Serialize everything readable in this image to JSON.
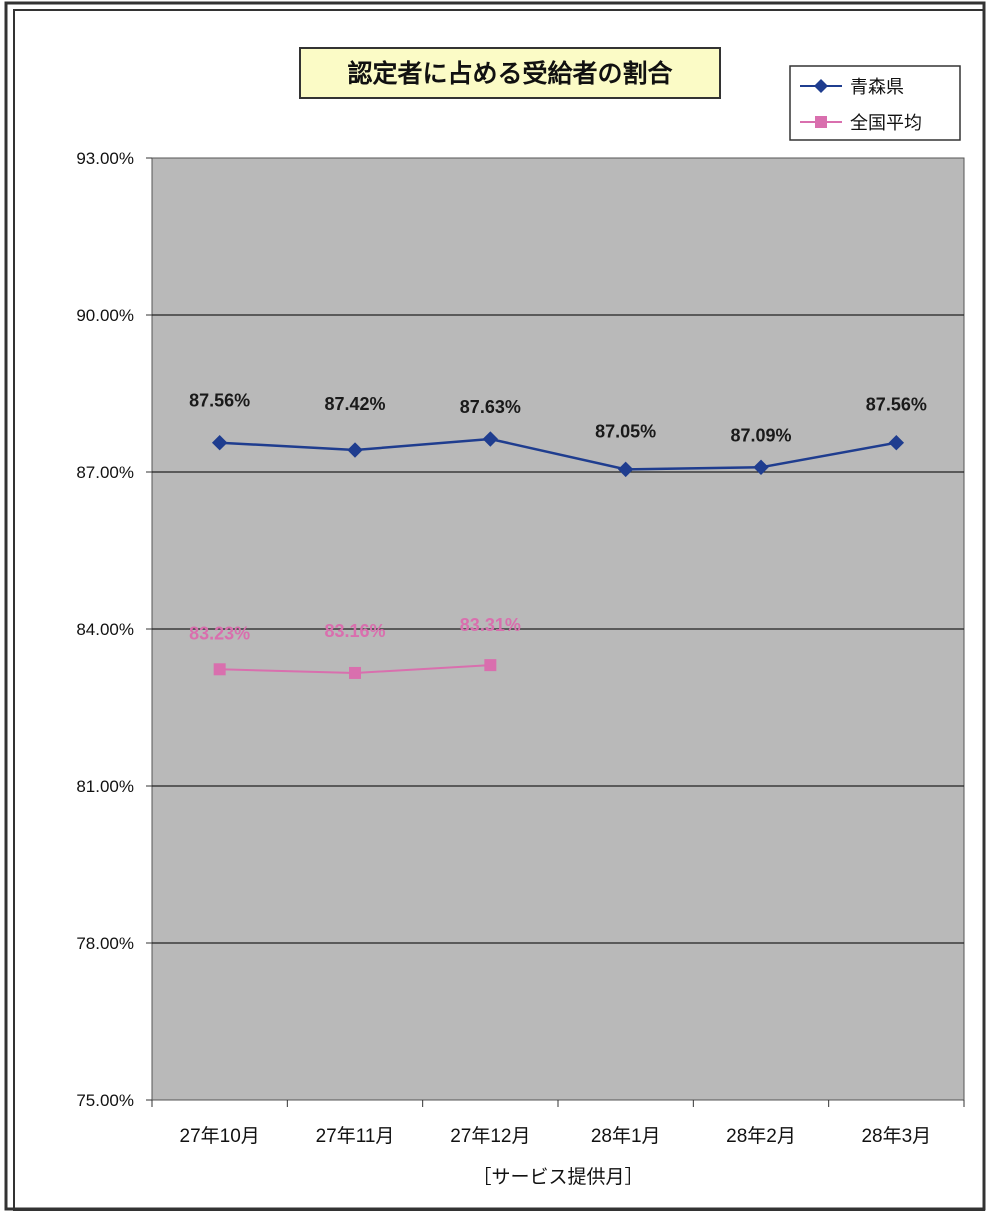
{
  "colors": {
    "plot_bg": "#b9b9b9",
    "gridline": "#222222",
    "series_aomori": "#1f3d8f",
    "series_national": "#d96fae",
    "title_bg": "#fbfbc6"
  },
  "chart_data": {
    "type": "line",
    "title": "認定者に占める受給者の割合",
    "xlabel": "［サービス提供月］",
    "ylabel": "",
    "ylim": [
      75,
      93
    ],
    "yticks": [
      75,
      78,
      81,
      84,
      87,
      90,
      93
    ],
    "ytick_labels": [
      "75.00%",
      "78.00%",
      "81.00%",
      "84.00%",
      "87.00%",
      "90.00%",
      "93.00%"
    ],
    "categories": [
      "27年10月",
      "27年11月",
      "27年12月",
      "28年1月",
      "28年2月",
      "28年3月"
    ],
    "grid": true,
    "legend_position": "top-right",
    "series": [
      {
        "name": "青森県",
        "marker": "diamond",
        "values": [
          87.56,
          87.42,
          87.63,
          87.05,
          87.09,
          87.56
        ],
        "labels": [
          "87.56%",
          "87.42%",
          "87.63%",
          "87.05%",
          "87.09%",
          "87.56%"
        ]
      },
      {
        "name": "全国平均",
        "marker": "square",
        "values": [
          83.23,
          83.16,
          83.31,
          null,
          null,
          null
        ],
        "labels": [
          "83.23%",
          "83.16%",
          "83.31%",
          null,
          null,
          null
        ]
      }
    ]
  }
}
